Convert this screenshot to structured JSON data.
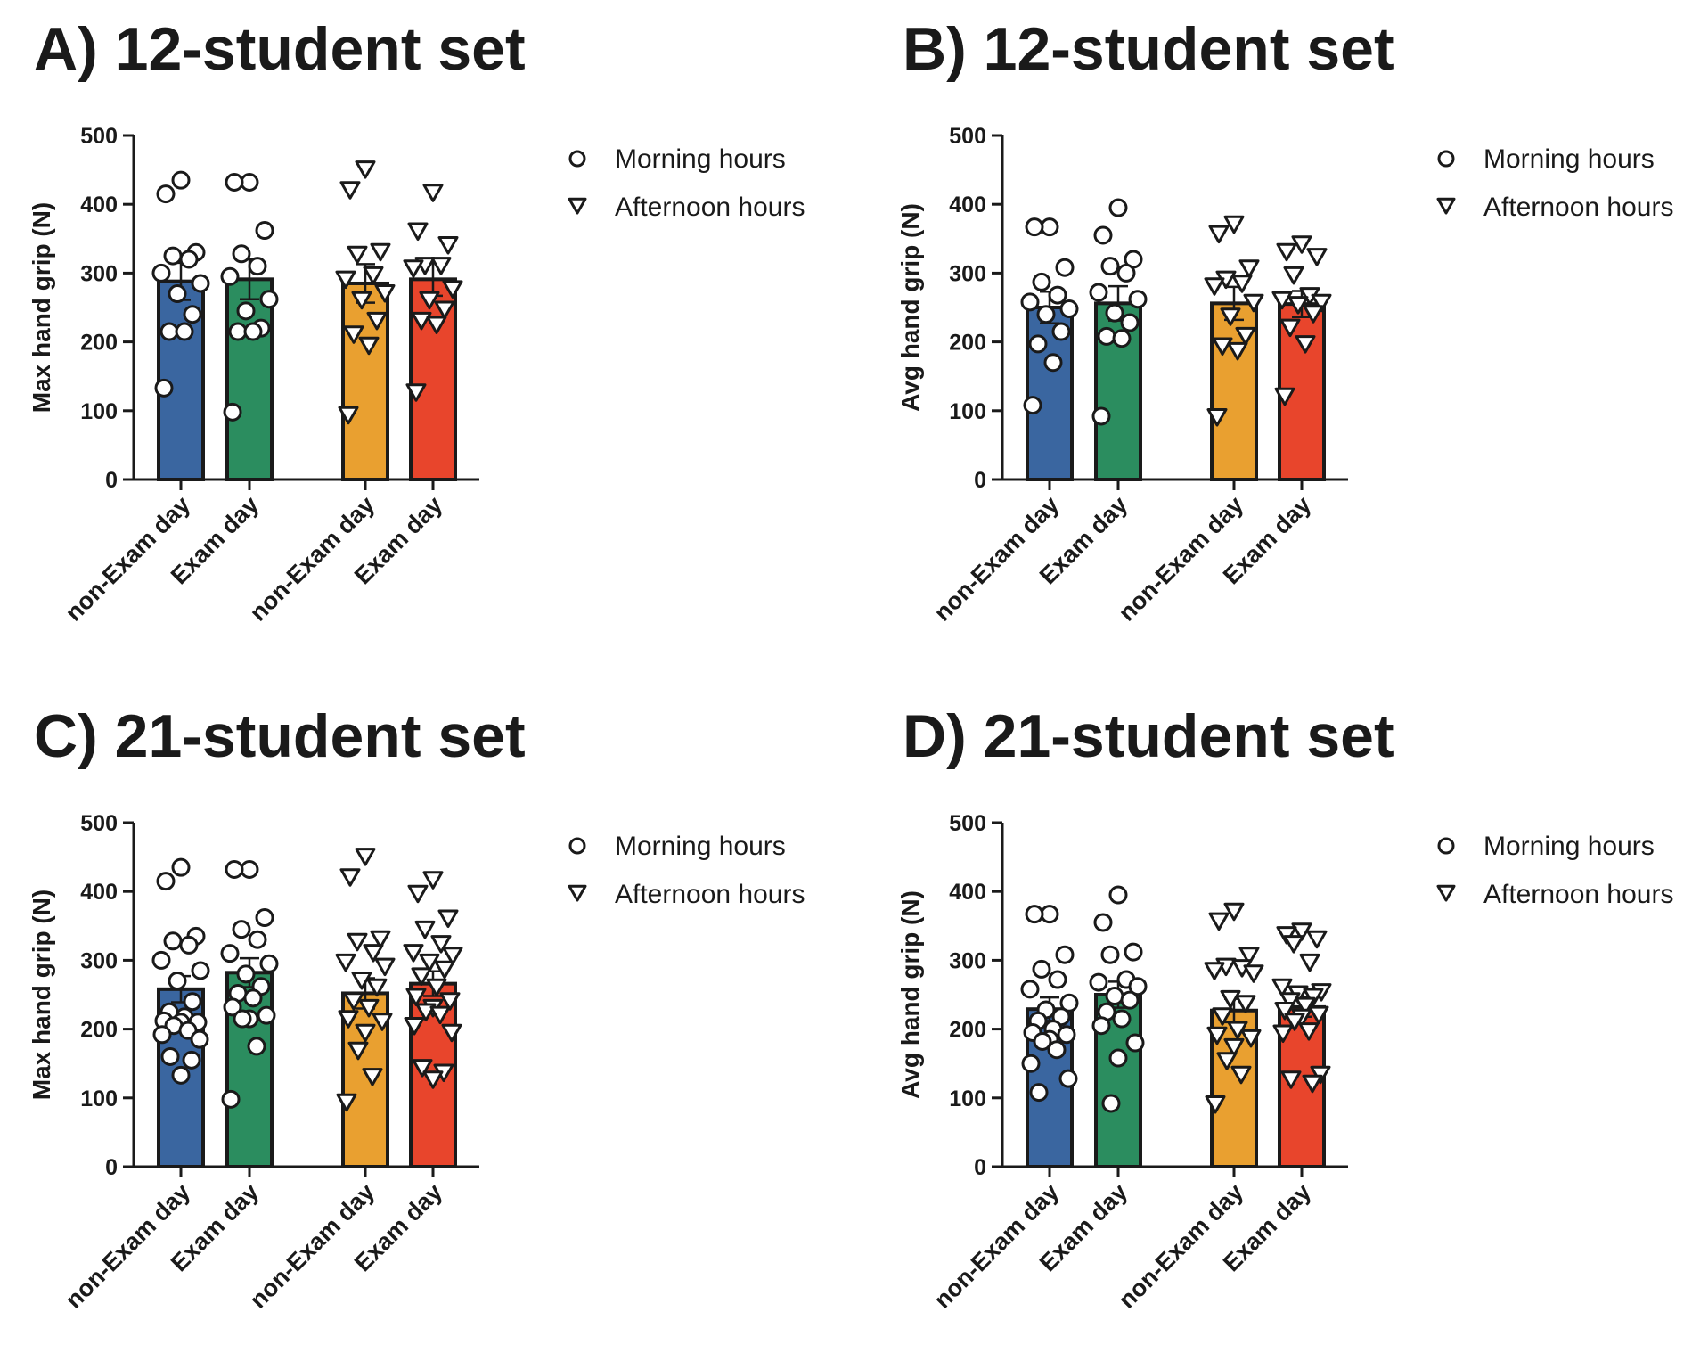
{
  "colors": {
    "non_exam_morning": "#3a66a0",
    "exam_morning": "#2b8d5f",
    "non_exam_afternoon": "#e9a030",
    "exam_afternoon": "#e8452c",
    "ink": "#1a1a1a"
  },
  "legend": {
    "morning": {
      "label": "Morning hours",
      "marker": "circle-icon"
    },
    "afternoon": {
      "label": "Afternoon hours",
      "marker": "triangle-down-icon"
    }
  },
  "chart_data": [
    {
      "id": "A",
      "type": "bar",
      "title": "A) 12-student set",
      "ylabel": "Max hand grip (N)",
      "ylim": [
        0,
        500
      ],
      "yticks": [
        0,
        100,
        200,
        300,
        400,
        500
      ],
      "categories": [
        "non-Exam day",
        "Exam day",
        "non-Exam day",
        "Exam day"
      ],
      "series": [
        {
          "name": "non-Exam day (Morning hours)",
          "period": "morning",
          "mean": 288,
          "sem": 27,
          "points": [
            435,
            415,
            330,
            325,
            320,
            300,
            285,
            270,
            240,
            215,
            215,
            133
          ]
        },
        {
          "name": "Exam day (Morning hours)",
          "period": "morning",
          "mean": 291,
          "sem": 29,
          "points": [
            432,
            432,
            362,
            328,
            310,
            295,
            262,
            245,
            220,
            215,
            215,
            98
          ]
        },
        {
          "name": "non-Exam day (Afternoon hours)",
          "period": "afternoon",
          "mean": 285,
          "sem": 28,
          "points": [
            452,
            422,
            332,
            328,
            298,
            292,
            272,
            262,
            232,
            212,
            196,
            95
          ]
        },
        {
          "name": "Exam day (Afternoon hours)",
          "period": "afternoon",
          "mean": 291,
          "sem": 24,
          "points": [
            418,
            362,
            342,
            312,
            312,
            308,
            278,
            262,
            248,
            232,
            226,
            128
          ]
        }
      ]
    },
    {
      "id": "B",
      "type": "bar",
      "title": "B) 12-student set",
      "ylabel": "Avg hand grip (N)",
      "ylim": [
        0,
        500
      ],
      "yticks": [
        0,
        100,
        200,
        300,
        400,
        500
      ],
      "categories": [
        "non-Exam day",
        "Exam day",
        "non-Exam day",
        "Exam day"
      ],
      "series": [
        {
          "name": "non-Exam day (Morning hours)",
          "period": "morning",
          "mean": 250,
          "sem": 23,
          "points": [
            367,
            367,
            308,
            287,
            268,
            258,
            248,
            240,
            215,
            197,
            170,
            108
          ]
        },
        {
          "name": "Exam day (Morning hours)",
          "period": "morning",
          "mean": 256,
          "sem": 25,
          "points": [
            395,
            355,
            320,
            310,
            300,
            272,
            262,
            242,
            228,
            208,
            205,
            92
          ]
        },
        {
          "name": "non-Exam day (Afternoon hours)",
          "period": "afternoon",
          "mean": 256,
          "sem": 24,
          "points": [
            372,
            358,
            308,
            292,
            286,
            282,
            258,
            238,
            210,
            195,
            188,
            92
          ]
        },
        {
          "name": "Exam day (Afternoon hours)",
          "period": "afternoon",
          "mean": 255,
          "sem": 19,
          "points": [
            343,
            332,
            325,
            298,
            268,
            262,
            258,
            255,
            242,
            222,
            198,
            122
          ]
        }
      ]
    },
    {
      "id": "C",
      "type": "bar",
      "title": "C) 21-student set",
      "ylabel": "Max hand grip (N)",
      "ylim": [
        0,
        500
      ],
      "yticks": [
        0,
        100,
        200,
        300,
        400,
        500
      ],
      "categories": [
        "non-Exam day",
        "Exam day",
        "non-Exam day",
        "Exam day"
      ],
      "series": [
        {
          "name": "non-Exam day (Morning hours)",
          "period": "morning",
          "mean": 258,
          "sem": 19,
          "points": [
            435,
            415,
            335,
            328,
            322,
            300,
            285,
            270,
            240,
            225,
            218,
            212,
            210,
            210,
            205,
            198,
            192,
            185,
            160,
            155,
            133
          ]
        },
        {
          "name": "Exam day (Morning hours)",
          "period": "morning",
          "mean": 282,
          "sem": 21,
          "points": [
            432,
            432,
            362,
            345,
            330,
            310,
            295,
            280,
            262,
            252,
            245,
            232,
            220,
            215,
            215,
            175,
            98
          ]
        },
        {
          "name": "non-Exam day (Afternoon hours)",
          "period": "afternoon",
          "mean": 252,
          "sem": 22,
          "points": [
            452,
            422,
            332,
            328,
            312,
            298,
            292,
            272,
            262,
            242,
            232,
            216,
            212,
            196,
            170,
            132,
            95
          ]
        },
        {
          "name": "Exam day (Afternoon hours)",
          "period": "afternoon",
          "mean": 266,
          "sem": 18,
          "points": [
            418,
            398,
            362,
            346,
            325,
            312,
            308,
            298,
            288,
            278,
            262,
            248,
            242,
            232,
            226,
            222,
            206,
            196,
            145,
            138,
            128
          ]
        }
      ]
    },
    {
      "id": "D",
      "type": "bar",
      "title": "D) 21-student set",
      "ylabel": "Avg hand grip (N)",
      "ylim": [
        0,
        500
      ],
      "yticks": [
        0,
        100,
        200,
        300,
        400,
        500
      ],
      "categories": [
        "non-Exam day",
        "Exam day",
        "non-Exam day",
        "Exam day"
      ],
      "series": [
        {
          "name": "non-Exam day (Morning hours)",
          "period": "morning",
          "mean": 229,
          "sem": 17,
          "points": [
            367,
            367,
            308,
            287,
            272,
            258,
            238,
            228,
            218,
            212,
            200,
            195,
            192,
            185,
            182,
            170,
            150,
            128,
            108
          ]
        },
        {
          "name": "Exam day (Morning hours)",
          "period": "morning",
          "mean": 250,
          "sem": 19,
          "points": [
            395,
            355,
            312,
            308,
            272,
            268,
            262,
            248,
            242,
            225,
            215,
            205,
            180,
            158,
            92
          ]
        },
        {
          "name": "non-Exam day (Afternoon hours)",
          "period": "afternoon",
          "mean": 227,
          "sem": 17,
          "points": [
            372,
            358,
            308,
            292,
            290,
            286,
            282,
            245,
            238,
            220,
            200,
            192,
            188,
            175,
            155,
            135,
            92
          ]
        },
        {
          "name": "Exam day (Afternoon hours)",
          "period": "afternoon",
          "mean": 232,
          "sem": 14,
          "points": [
            343,
            338,
            332,
            325,
            298,
            262,
            255,
            252,
            248,
            242,
            235,
            228,
            222,
            218,
            212,
            198,
            195,
            135,
            128,
            122
          ]
        }
      ]
    }
  ]
}
